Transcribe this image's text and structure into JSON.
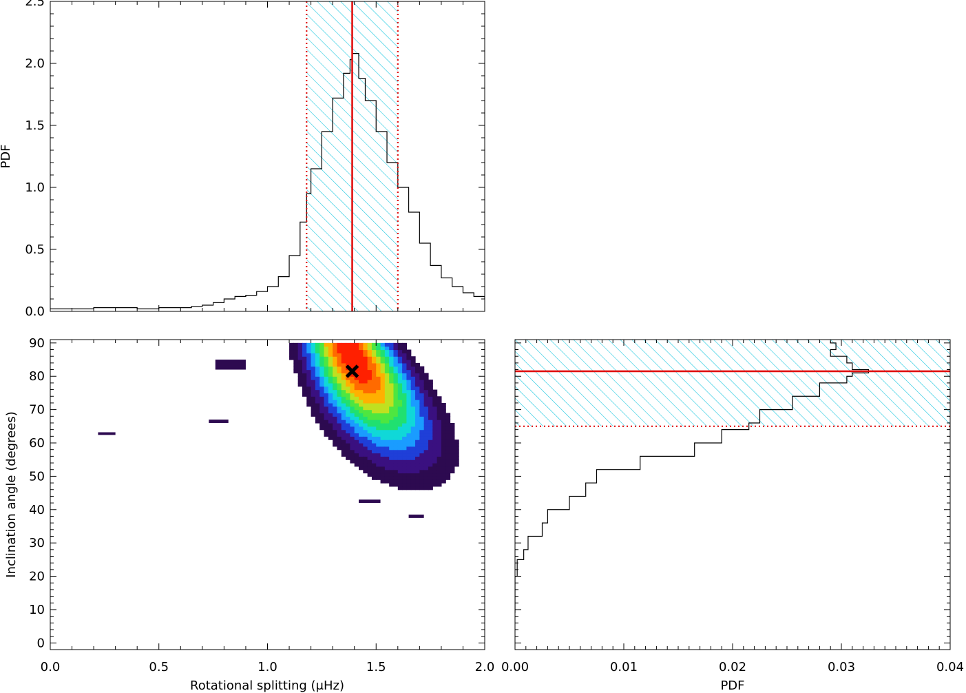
{
  "chart_data": [
    {
      "type": "histogram",
      "panel": "top-left",
      "ylabel": "PDF",
      "xlim": [
        0.0,
        2.0
      ],
      "ylim": [
        0.0,
        2.5
      ],
      "xticks": [
        0.0,
        0.5,
        1.0,
        1.5,
        2.0
      ],
      "yticks": [
        "0.0",
        "0.5",
        "1.0",
        "1.5",
        "2.0",
        "2.5"
      ],
      "median": 1.39,
      "interval": [
        1.18,
        1.6
      ],
      "x": [
        0.0,
        0.1,
        0.2,
        0.3,
        0.4,
        0.5,
        0.6,
        0.65,
        0.7,
        0.75,
        0.8,
        0.85,
        0.9,
        0.95,
        1.0,
        1.05,
        1.1,
        1.15,
        1.18,
        1.2,
        1.25,
        1.3,
        1.35,
        1.38,
        1.39,
        1.42,
        1.45,
        1.5,
        1.55,
        1.6,
        1.65,
        1.7,
        1.75,
        1.8,
        1.85,
        1.9,
        1.95,
        2.0
      ],
      "y": [
        0.02,
        0.02,
        0.03,
        0.03,
        0.02,
        0.03,
        0.03,
        0.04,
        0.05,
        0.07,
        0.1,
        0.12,
        0.13,
        0.16,
        0.2,
        0.28,
        0.45,
        0.72,
        0.95,
        1.15,
        1.45,
        1.72,
        1.92,
        2.03,
        2.08,
        1.88,
        1.7,
        1.45,
        1.2,
        1.0,
        0.8,
        0.55,
        0.37,
        0.27,
        0.2,
        0.15,
        0.12,
        0.1
      ]
    },
    {
      "type": "heatmap",
      "panel": "bottom-left",
      "xlabel": "Rotational splitting (μHz)",
      "ylabel": "Inclination angle (degrees)",
      "xlim": [
        0.0,
        2.0
      ],
      "ylim": [
        -2,
        91
      ],
      "xticks": [
        "0.0",
        "0.5",
        "1.0",
        "1.5",
        "2.0"
      ],
      "yticks": [
        "0",
        "10",
        "20",
        "30",
        "40",
        "50",
        "60",
        "70",
        "80",
        "90"
      ],
      "best_fit": {
        "x": 1.39,
        "y": 81.5
      },
      "colors": [
        "#2d0a50",
        "#3a1080",
        "#1f3fd8",
        "#1a9cff",
        "#10d8d8",
        "#20e070",
        "#4ee640",
        "#c0e020",
        "#ffb000",
        "#ff6a00",
        "#ff2000"
      ]
    },
    {
      "type": "histogram",
      "panel": "bottom-right",
      "orientation": "horizontal",
      "xlabel": "PDF",
      "xlim": [
        0.0,
        0.04
      ],
      "ylim": [
        -2,
        91
      ],
      "xticks": [
        "0.00",
        "0.01",
        "0.02",
        "0.03",
        "0.04"
      ],
      "median": 81.5,
      "interval": [
        65,
        91
      ],
      "inclination": [
        9,
        12,
        20,
        25,
        28,
        32,
        36,
        40,
        44,
        48,
        52,
        56,
        60,
        64,
        66,
        70,
        74,
        78,
        80,
        81,
        82,
        84,
        86,
        88,
        90
      ],
      "pdf": [
        0.0,
        0.0,
        0.0002,
        0.0008,
        0.0012,
        0.0025,
        0.003,
        0.005,
        0.0065,
        0.0075,
        0.0115,
        0.0165,
        0.019,
        0.0215,
        0.0225,
        0.0255,
        0.028,
        0.0305,
        0.031,
        0.0325,
        0.031,
        0.0305,
        0.029,
        0.0295,
        0.029
      ]
    }
  ],
  "colors": {
    "hatch": "#1ec8e0",
    "median_line": "#e01010",
    "interval_line": "#e01010",
    "curve": "#000000",
    "marker": "#000000"
  }
}
